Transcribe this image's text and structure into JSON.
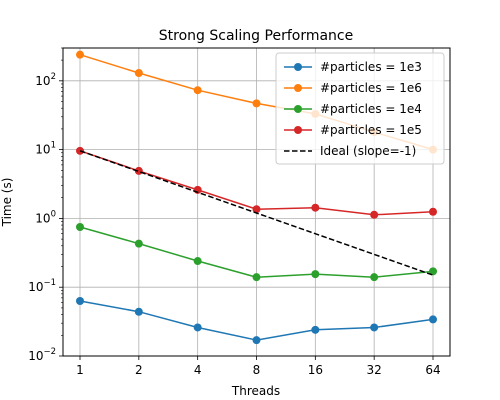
{
  "chart_data": {
    "type": "line",
    "title": "Strong Scaling Performance",
    "xlabel": "Threads",
    "ylabel": "Time (s)",
    "x_scale": "log2",
    "y_scale": "log10",
    "grid": true,
    "legend_position": "top-right",
    "ylim": [
      0.01,
      300
    ],
    "x": [
      1,
      2,
      4,
      8,
      16,
      32,
      64
    ],
    "x_tick_labels": [
      "1",
      "2",
      "4",
      "8",
      "16",
      "32",
      "64"
    ],
    "y_ticks": [
      0.01,
      0.1,
      1,
      10,
      100
    ],
    "y_tick_labels": [
      {
        "base": "10",
        "exp": "−2"
      },
      {
        "base": "10",
        "exp": "−1"
      },
      {
        "base": "10",
        "exp": "0"
      },
      {
        "base": "10",
        "exp": "1"
      },
      {
        "base": "10",
        "exp": "2"
      }
    ],
    "series": [
      {
        "name": "#particles = 1e3",
        "color": "#1f77b4",
        "marker": "circle",
        "style": "solid",
        "values": [
          0.063,
          0.044,
          0.026,
          0.017,
          0.024,
          0.026,
          0.034
        ]
      },
      {
        "name": "#particles = 1e6",
        "color": "#ff7f0e",
        "marker": "circle",
        "style": "solid",
        "values": [
          240,
          130,
          73,
          47,
          33,
          18,
          10
        ]
      },
      {
        "name": "#particles = 1e4",
        "color": "#2ca02c",
        "marker": "circle",
        "style": "solid",
        "values": [
          0.75,
          0.43,
          0.24,
          0.14,
          0.155,
          0.14,
          0.17
        ]
      },
      {
        "name": "#particles = 1e5",
        "color": "#d62728",
        "marker": "circle",
        "style": "solid",
        "values": [
          9.6,
          4.9,
          2.6,
          1.36,
          1.43,
          1.13,
          1.25
        ]
      },
      {
        "name": "Ideal (slope=-1)",
        "color": "#000000",
        "marker": "none",
        "style": "dashed",
        "values": [
          9.6,
          4.8,
          2.4,
          1.2,
          0.6,
          0.3,
          0.15
        ]
      }
    ]
  }
}
